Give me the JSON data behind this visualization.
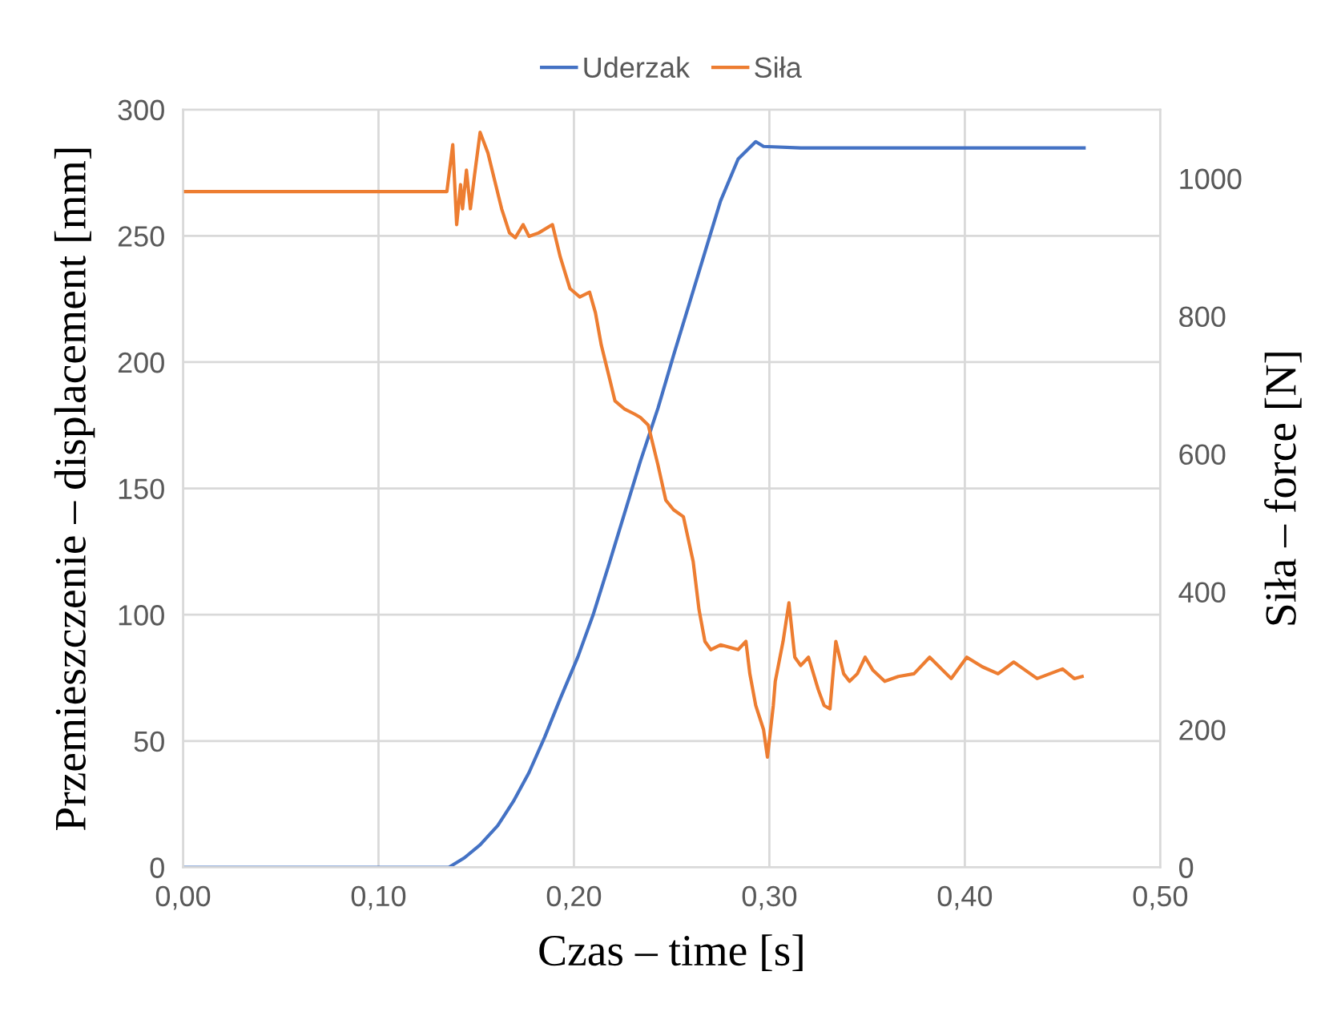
{
  "chart_data": {
    "type": "line",
    "xlabel": "Czas – time [s]",
    "ylabel": "Przemieszczenie – displacement [mm]",
    "y2label": "Siła – force [N]",
    "xlim": [
      0,
      0.5
    ],
    "xticks": [
      {
        "value": 0,
        "label": "0,00"
      },
      {
        "value": 0.1,
        "label": "0,10"
      },
      {
        "value": 0.2,
        "label": "0,20"
      },
      {
        "value": 0.3,
        "label": "0,30"
      },
      {
        "value": 0.4,
        "label": "0,40"
      },
      {
        "value": 0.5,
        "label": "0,50"
      }
    ],
    "ylim": [
      0,
      300
    ],
    "yticks": [
      0,
      50,
      100,
      150,
      200,
      250,
      300
    ],
    "y2lim": [
      0,
      1100
    ],
    "y2ticks": [
      0,
      200,
      400,
      600,
      800,
      1000
    ],
    "grid": true,
    "legend": "top",
    "line_style": "solid",
    "marker": "none",
    "series": [
      {
        "name": "Uderzak",
        "color": "#4472c4",
        "x": [
          0,
          0.136,
          0.144,
          0.152,
          0.161,
          0.169,
          0.177,
          0.185,
          0.193,
          0.202,
          0.21,
          0.218,
          0.226,
          0.234,
          0.243,
          0.251,
          0.259,
          0.267,
          0.275,
          0.284,
          0.293,
          0.297,
          0.316,
          0.398,
          0.461
        ],
        "values": [
          0,
          0,
          3.8,
          8.9,
          16.5,
          26.1,
          37.5,
          51.5,
          66.8,
          83.3,
          100.4,
          120.2,
          140.5,
          160.8,
          181.8,
          202.8,
          223.1,
          243.5,
          263.8,
          280.4,
          287.3,
          285.4,
          284.8,
          284.8,
          284.8
        ]
      },
      {
        "name": "Siła",
        "color": "#ed7d31",
        "axis": "y2",
        "x": [
          0,
          0.135,
          0.138,
          0.14,
          0.142,
          0.143,
          0.145,
          0.147,
          0.149,
          0.152,
          0.156,
          0.159,
          0.163,
          0.167,
          0.17,
          0.174,
          0.177,
          0.182,
          0.189,
          0.193,
          0.198,
          0.203,
          0.208,
          0.211,
          0.214,
          0.218,
          0.221,
          0.226,
          0.231,
          0.234,
          0.238,
          0.243,
          0.247,
          0.251,
          0.256,
          0.261,
          0.264,
          0.267,
          0.27,
          0.275,
          0.284,
          0.288,
          0.29,
          0.293,
          0.297,
          0.299,
          0.302,
          0.303,
          0.307,
          0.31,
          0.313,
          0.316,
          0.32,
          0.325,
          0.328,
          0.331,
          0.334,
          0.338,
          0.341,
          0.345,
          0.349,
          0.353,
          0.359,
          0.366,
          0.374,
          0.382,
          0.393,
          0.401,
          0.409,
          0.417,
          0.425,
          0.437,
          0.45,
          0.456,
          0.46
        ],
        "values": [
          981,
          981,
          1049,
          933,
          991,
          956,
          1012,
          956,
          1002,
          1067,
          1037,
          1002,
          956,
          921,
          914,
          933,
          916,
          921,
          933,
          886,
          840,
          828,
          835,
          805,
          758,
          712,
          677,
          665,
          658,
          653,
          642,
          584,
          533,
          519,
          509,
          444,
          374,
          328,
          316,
          323,
          316,
          328,
          281,
          235,
          200,
          160,
          235,
          270,
          328,
          384,
          305,
          293,
          305,
          258,
          235,
          230,
          328,
          281,
          270,
          281,
          305,
          286,
          270,
          277,
          281,
          305,
          274,
          305,
          291,
          281,
          298,
          274,
          288,
          274,
          277
        ]
      }
    ]
  }
}
